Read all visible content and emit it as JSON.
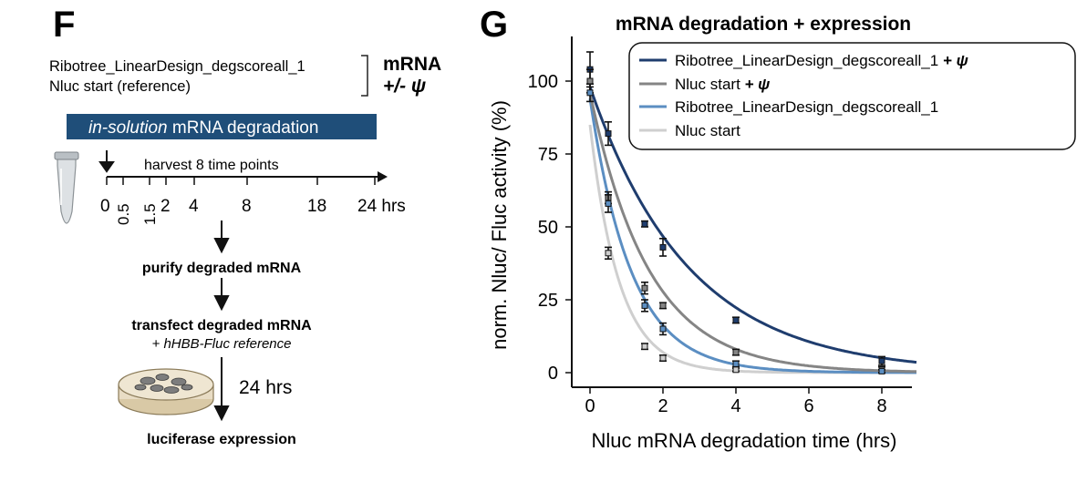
{
  "panel_f": {
    "letter": "F",
    "constructs": [
      "Ribotree_LinearDesign_degscoreall_1",
      "Nluc start (reference)"
    ],
    "mrna_label": "mRNA",
    "psi_label": "+/- ψ",
    "banner_italic": "in-solution",
    "banner_rest": " mRNA degradation",
    "harvest_label": "harvest 8 time points",
    "time_points": [
      "0",
      "0.5",
      "1.5",
      "2",
      "4",
      "8",
      "18",
      "24 hrs"
    ],
    "step_purify": "purify degraded mRNA",
    "step_transfect": "transfect degraded mRNA",
    "step_reference_prefix": "+ ",
    "step_reference_italic": "hHBB-Fluc reference",
    "incubation_label": "24 hrs",
    "step_final": "luciferase expression",
    "colors": {
      "banner": "#1f4e79",
      "tube": "#c8ccd0",
      "dish": "#e8dcc4"
    }
  },
  "panel_g": {
    "letter": "G",
    "chart_data": {
      "type": "scatter",
      "title": "mRNA degradation + expression",
      "xlabel": "Nluc mRNA degradation time (hrs)",
      "ylabel": "norm. Nluc/ Fluc activity (%)",
      "xlim": [
        -0.5,
        9
      ],
      "ylim": [
        -2,
        115
      ],
      "xticks": [
        0,
        2,
        4,
        6,
        8
      ],
      "yticks": [
        0,
        25,
        50,
        75,
        100
      ],
      "grid": false,
      "legend_placement": "top-right",
      "series": [
        {
          "name": "Ribotree_LinearDesign_degscoreall_1",
          "name_suffix": " + ψ",
          "color": "#1f3d6e",
          "fit": {
            "a": 98,
            "k": 0.37
          },
          "points": [
            {
              "x": 0,
              "y": 104,
              "err": 6
            },
            {
              "x": 0.5,
              "y": 82,
              "err": 4
            },
            {
              "x": 1.5,
              "y": 51,
              "err": 1
            },
            {
              "x": 2,
              "y": 43,
              "err": 3
            },
            {
              "x": 4,
              "y": 18,
              "err": 1
            },
            {
              "x": 8,
              "y": 4,
              "err": 1.5
            }
          ]
        },
        {
          "name": "Nluc start",
          "name_suffix": " + ψ",
          "color": "#858585",
          "fit": {
            "a": 96,
            "k": 0.62
          },
          "points": [
            {
              "x": 0,
              "y": 100,
              "err": 4
            },
            {
              "x": 0.5,
              "y": 60,
              "err": 2
            },
            {
              "x": 1.5,
              "y": 29,
              "err": 2
            },
            {
              "x": 2,
              "y": 23,
              "err": 1
            },
            {
              "x": 4,
              "y": 7,
              "err": 1
            },
            {
              "x": 8,
              "y": 1,
              "err": 1
            }
          ]
        },
        {
          "name": "Ribotree_LinearDesign_degscoreall_1",
          "name_suffix": "",
          "color": "#5b8ec2",
          "fit": {
            "a": 94,
            "k": 0.88
          },
          "points": [
            {
              "x": 0,
              "y": 96,
              "err": 3
            },
            {
              "x": 0.5,
              "y": 58,
              "err": 3
            },
            {
              "x": 1.5,
              "y": 23,
              "err": 2
            },
            {
              "x": 2,
              "y": 15,
              "err": 2
            },
            {
              "x": 4,
              "y": 3,
              "err": 1
            },
            {
              "x": 8,
              "y": 0.5,
              "err": 0.5
            }
          ]
        },
        {
          "name": "Nluc start",
          "name_suffix": "",
          "color": "#cfcfcf",
          "fit": {
            "a": 85,
            "k": 1.25
          },
          "points": [
            {
              "x": 0.5,
              "y": 41,
              "err": 2
            },
            {
              "x": 1.5,
              "y": 9,
              "err": 1
            },
            {
              "x": 2,
              "y": 5,
              "err": 1
            },
            {
              "x": 4,
              "y": 1,
              "err": 0.5
            }
          ]
        }
      ]
    }
  }
}
